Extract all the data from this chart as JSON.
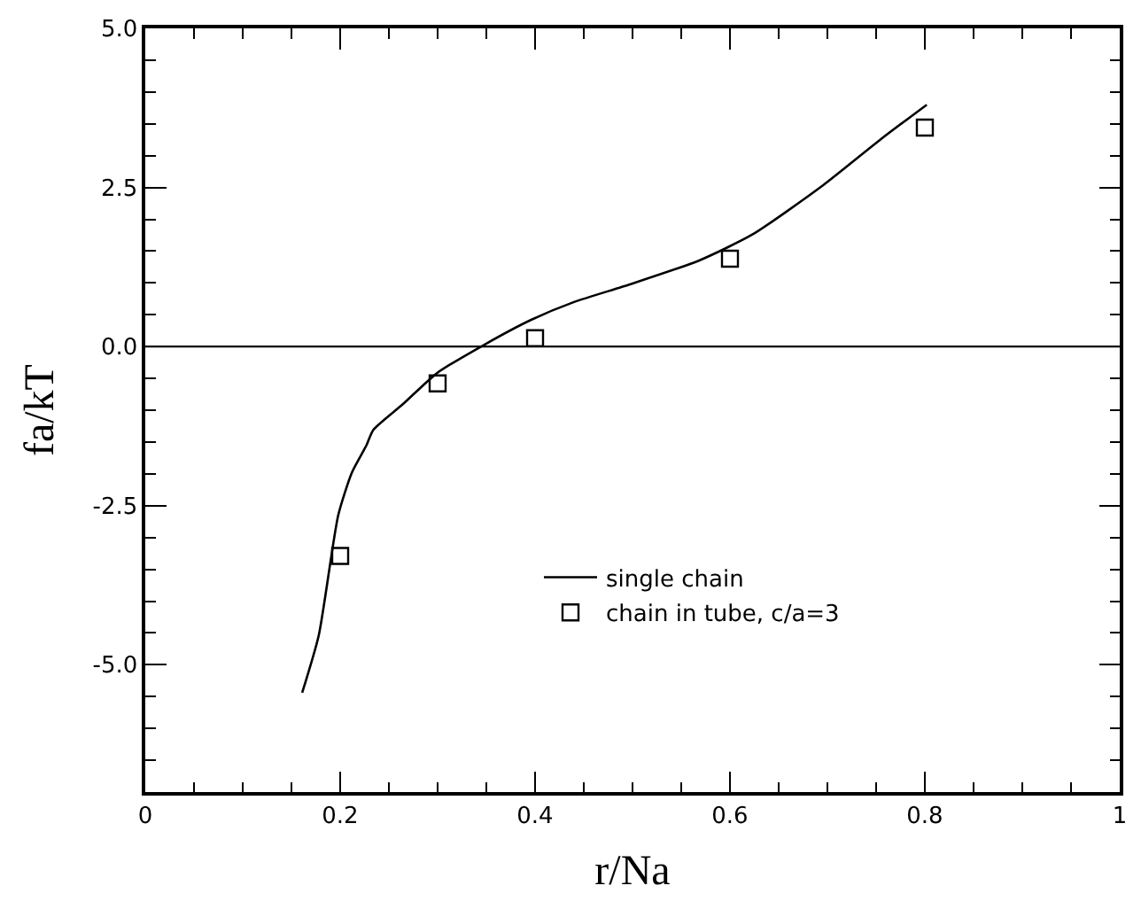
{
  "chart_data": {
    "type": "line",
    "xlabel": "r/Na",
    "ylabel": "fa/kT",
    "xlim": [
      0,
      1
    ],
    "xticks": [
      0,
      0.2,
      0.4,
      0.6,
      0.8,
      1
    ],
    "ylim": [
      -7,
      5
    ],
    "yticks": [
      {
        "value": -5,
        "label": "-5.0"
      },
      {
        "value": -2.5,
        "label": "-2.5"
      },
      {
        "value": 0,
        "label": "0.0"
      },
      {
        "value": 2.5,
        "label": "2.5"
      },
      {
        "value": 5,
        "label": "5.0"
      }
    ],
    "series": [
      {
        "name": "single chain",
        "color": "#000000",
        "marker": "none",
        "line_style": "solid",
        "x": [
          0.161,
          0.178,
          0.198,
          0.212,
          0.227,
          0.234,
          0.264,
          0.3,
          0.348,
          0.396,
          0.44,
          0.498,
          0.568,
          0.623,
          0.696,
          0.755,
          0.802
        ],
        "values": [
          -5.44,
          -4.54,
          -2.65,
          -1.98,
          -1.55,
          -1.31,
          -0.91,
          -0.41,
          0.03,
          0.42,
          0.7,
          0.98,
          1.35,
          1.76,
          2.54,
          3.26,
          3.8
        ]
      },
      {
        "name": "chain in tube, c/a=3",
        "type": "scatter",
        "color": "#000000",
        "marker": "square",
        "x": [
          0.2,
          0.3,
          0.4,
          0.6,
          0.8
        ],
        "values": [
          -3.29,
          -0.58,
          0.13,
          1.38,
          3.44
        ]
      }
    ],
    "ref_lines": [
      {
        "axis": "y",
        "value": 0,
        "color": "#000000"
      }
    ],
    "grid": false,
    "legend": "bottom"
  }
}
